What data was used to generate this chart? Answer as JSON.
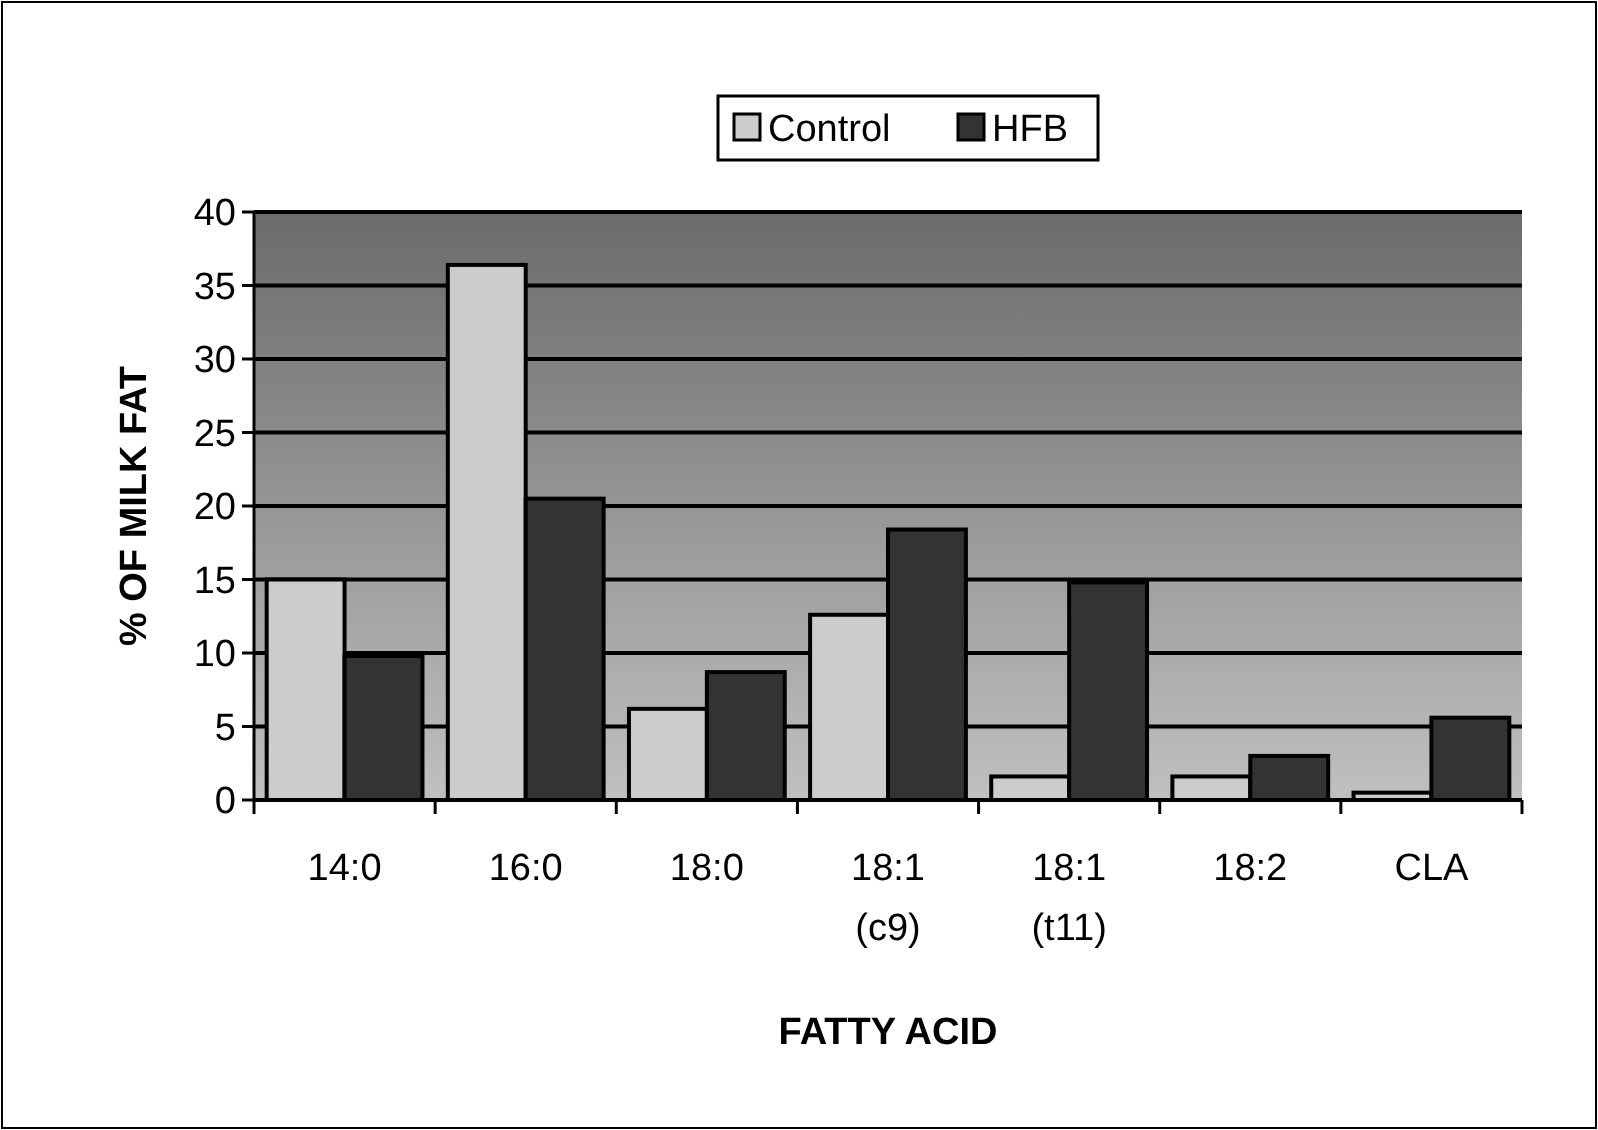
{
  "chart_data": {
    "type": "bar",
    "xlabel": "FATTY ACID",
    "ylabel": "% OF MILK FAT",
    "categories": [
      "14:0",
      "16:0",
      "18:0",
      "18:1\n(c9)",
      "18:1\n(t11)",
      "18:2",
      "CLA"
    ],
    "series": [
      {
        "name": "Control",
        "color": "#cccccc",
        "values": [
          15.0,
          36.4,
          6.2,
          12.6,
          1.6,
          1.6,
          0.5
        ]
      },
      {
        "name": "HFB",
        "color": "#333333",
        "values": [
          9.8,
          20.5,
          8.7,
          18.4,
          14.8,
          3.0,
          5.6
        ]
      }
    ],
    "ylim": [
      0,
      40
    ],
    "yticks": [
      0,
      5,
      10,
      15,
      20,
      25,
      30,
      35,
      40
    ],
    "grid": "y",
    "legend": "top"
  }
}
